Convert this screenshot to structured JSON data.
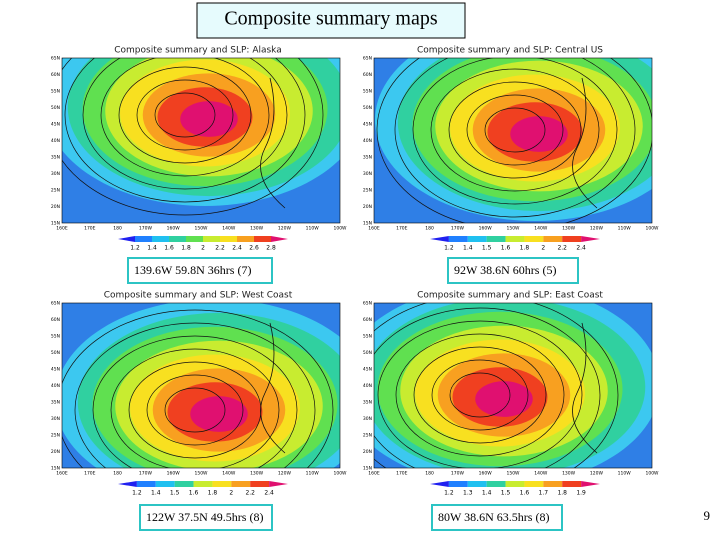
{
  "title": "Composite summary maps",
  "page_number": "9",
  "maps": [
    {
      "title": "Composite summary and SLP: Alaska",
      "caption": "139.6W 59.8N 36hrs (7)",
      "colorbar": [
        "1.2",
        "1.4",
        "1.6",
        "1.8",
        "2",
        "2.2",
        "2.4",
        "2.6",
        "2.8"
      ],
      "lat_labels": [
        "65N",
        "60N",
        "55N",
        "50N",
        "45N",
        "40N",
        "35N",
        "30N",
        "25N",
        "20N",
        "15N"
      ],
      "lon_labels": [
        "160E",
        "170E",
        "180",
        "170W",
        "160W",
        "150W",
        "140W",
        "130W",
        "120W",
        "110W",
        "100W"
      ]
    },
    {
      "title": "Composite summary and SLP: Central US",
      "caption": "92W 38.6N 60hrs (5)",
      "colorbar": [
        "1.2",
        "1.4",
        "1.5",
        "1.6",
        "1.8",
        "2",
        "2.2",
        "2.4"
      ],
      "lat_labels": [
        "65N",
        "60N",
        "55N",
        "50N",
        "45N",
        "40N",
        "35N",
        "30N",
        "25N",
        "20N",
        "15N"
      ],
      "lon_labels": [
        "160E",
        "170E",
        "180",
        "170W",
        "160W",
        "150W",
        "140W",
        "130W",
        "120W",
        "110W",
        "100W"
      ]
    },
    {
      "title": "Composite summary and SLP: West Coast",
      "caption": "122W 37.5N 49.5hrs (8)",
      "colorbar": [
        "1.2",
        "1.4",
        "1.5",
        "1.6",
        "1.8",
        "2",
        "2.2",
        "2.4"
      ],
      "lat_labels": [
        "65N",
        "60N",
        "55N",
        "50N",
        "45N",
        "40N",
        "35N",
        "30N",
        "25N",
        "20N",
        "15N"
      ],
      "lon_labels": [
        "160E",
        "170E",
        "180",
        "170W",
        "160W",
        "150W",
        "140W",
        "130W",
        "120W",
        "110W",
        "100W"
      ]
    },
    {
      "title": "Composite summary and SLP: East Coast",
      "caption": "80W 38.6N 63.5hrs (8)",
      "colorbar": [
        "1.2",
        "1.3",
        "1.4",
        "1.5",
        "1.6",
        "1.7",
        "1.8",
        "1.9"
      ],
      "lat_labels": [
        "65N",
        "60N",
        "55N",
        "50N",
        "45N",
        "40N",
        "35N",
        "30N",
        "25N",
        "20N",
        "15N"
      ],
      "lon_labels": [
        "160E",
        "170E",
        "180",
        "170W",
        "160W",
        "150W",
        "140W",
        "130W",
        "120W",
        "110W",
        "100W"
      ]
    }
  ]
}
